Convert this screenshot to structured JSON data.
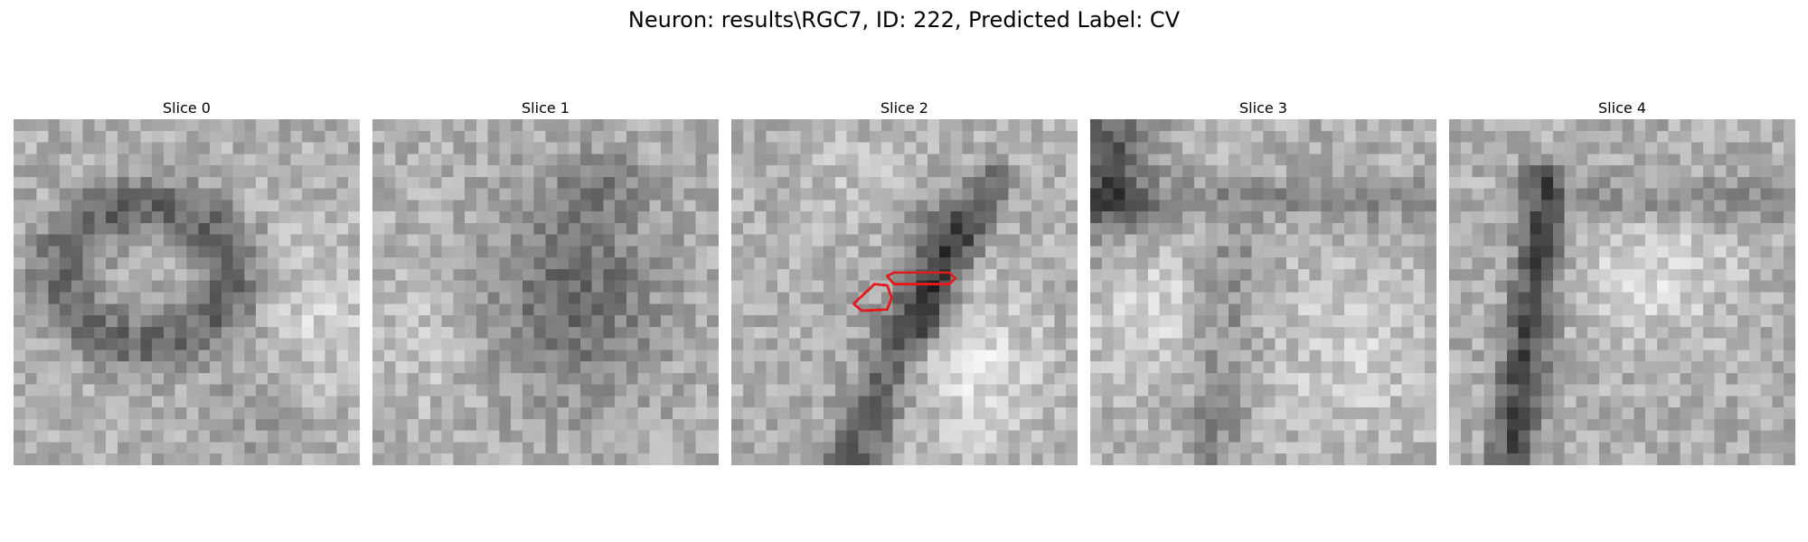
{
  "figure": {
    "title": "Neuron: results\\RGC7, ID: 222, Predicted Label: CV"
  },
  "slices": [
    {
      "label": "Slice 0",
      "seed": 11,
      "pattern": "ring"
    },
    {
      "label": "Slice 1",
      "seed": 23,
      "pattern": "diffuse"
    },
    {
      "label": "Slice 2",
      "seed": 37,
      "pattern": "diagonal",
      "has_contours": true
    },
    {
      "label": "Slice 3",
      "seed": 41,
      "pattern": "corner"
    },
    {
      "label": "Slice 4",
      "seed": 59,
      "pattern": "vertical"
    }
  ],
  "colors": {
    "contour": "#e31a1c",
    "background": "#ffffff"
  }
}
